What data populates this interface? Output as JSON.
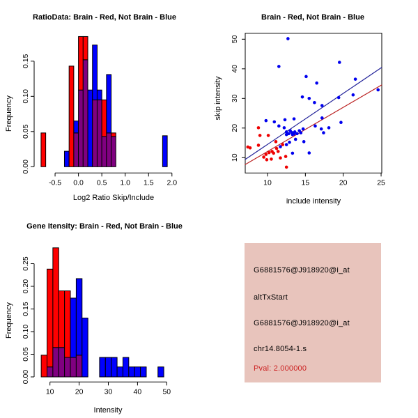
{
  "colors": {
    "red_bar": "#ff0000",
    "blue_bar": "#0000ff",
    "overlap_purple": "#800080",
    "red_point": "#ee0000",
    "blue_point": "#0000ee",
    "red_line": "#bb2222",
    "blue_line": "#222299",
    "axis": "#000000",
    "info_bg": "#e8c4bc",
    "pval_red": "#cc2222"
  },
  "chart_data": [
    {
      "id": "ratio_hist",
      "type": "bar",
      "title": "RatioData: Brain - Red, Not Brain - Blue",
      "xlabel": "Log2 Ratio Skip/Include",
      "ylabel": "Frequency",
      "legend": "Brain = red bars, Not Brain = blue bars, overlap = purple",
      "xlim": [
        -0.95,
        2.0
      ],
      "ylim": [
        0,
        0.19
      ],
      "bin_width": 0.1,
      "xtick_values": [
        -0.5,
        0.0,
        0.5,
        1.0,
        1.5,
        2.0
      ],
      "xtick_labels": [
        "-0.5",
        "0.0",
        "0.5",
        "1.0",
        "1.5",
        "2.0"
      ],
      "ytick_values": [
        0.0,
        0.05,
        0.1,
        0.15
      ],
      "ytick_labels": [
        "0.00",
        "0.05",
        "0.10",
        "0.15"
      ],
      "bars": [
        {
          "bin": [
            -0.8,
            -0.7
          ],
          "red": 0.048,
          "blue": 0
        },
        {
          "bin": [
            -0.3,
            -0.2
          ],
          "red": 0,
          "blue": 0.022
        },
        {
          "bin": [
            -0.2,
            -0.1
          ],
          "red": 0.143,
          "blue": 0
        },
        {
          "bin": [
            -0.1,
            0.0
          ],
          "red": 0.048,
          "blue": 0.065
        },
        {
          "bin": [
            0.0,
            0.1
          ],
          "red": 0.185,
          "blue": 0.109
        },
        {
          "bin": [
            0.1,
            0.2
          ],
          "red": 0.185,
          "blue": 0.152
        },
        {
          "bin": [
            0.2,
            0.3
          ],
          "red": 0,
          "blue": 0.109
        },
        {
          "bin": [
            0.3,
            0.4
          ],
          "red": 0.095,
          "blue": 0.173
        },
        {
          "bin": [
            0.4,
            0.5
          ],
          "red": 0.095,
          "blue": 0.109
        },
        {
          "bin": [
            0.5,
            0.6
          ],
          "red": 0.095,
          "blue": 0.043
        },
        {
          "bin": [
            0.6,
            0.7
          ],
          "red": 0.048,
          "blue": 0.131
        },
        {
          "bin": [
            0.7,
            0.8
          ],
          "red": 0.048,
          "blue": 0.043
        },
        {
          "bin": [
            1.8,
            1.9
          ],
          "red": 0,
          "blue": 0.044
        }
      ]
    },
    {
      "id": "intensity_scatter",
      "type": "scatter",
      "title": "Brain - Red, Not Brain - Blue",
      "xlabel": "include intensity",
      "ylabel": "skip intensity",
      "xlim": [
        7.0,
        25.1
      ],
      "ylim": [
        4.8,
        52.0
      ],
      "xtick_values": [
        10,
        15,
        20,
        25
      ],
      "xtick_labels": [
        "10",
        "15",
        "20",
        "25"
      ],
      "ytick_values": [
        10,
        20,
        30,
        40,
        50
      ],
      "ytick_labels": [
        "10",
        "20",
        "30",
        "40",
        "50"
      ],
      "blue_points": [
        [
          12.7,
          50.2
        ],
        [
          11.5,
          40.8
        ],
        [
          19.5,
          42.2
        ],
        [
          15.1,
          37.4
        ],
        [
          16.5,
          35.2
        ],
        [
          21.6,
          36.5
        ],
        [
          14.6,
          30.5
        ],
        [
          15.5,
          30.0
        ],
        [
          21.3,
          31.2
        ],
        [
          24.6,
          32.9
        ],
        [
          19.4,
          30.3
        ],
        [
          16.2,
          28.6
        ],
        [
          17.2,
          27.6
        ],
        [
          9.8,
          22.5
        ],
        [
          10.9,
          22.1
        ],
        [
          11.5,
          20.7
        ],
        [
          12.3,
          22.8
        ],
        [
          13.5,
          23.1
        ],
        [
          12.2,
          20.1
        ],
        [
          12.5,
          18.7
        ],
        [
          12.5,
          17.8
        ],
        [
          12.8,
          18.1
        ],
        [
          13.0,
          19.1
        ],
        [
          13.2,
          18.5
        ],
        [
          13.3,
          17.8
        ],
        [
          13.5,
          18.0
        ],
        [
          13.6,
          18.7
        ],
        [
          13.9,
          18.1
        ],
        [
          14.2,
          19.1
        ],
        [
          14.4,
          18.4
        ],
        [
          14.7,
          19.7
        ],
        [
          13.7,
          16.2
        ],
        [
          12.9,
          15.2
        ],
        [
          12.5,
          14.4
        ],
        [
          11.7,
          13.7
        ],
        [
          13.3,
          11.5
        ],
        [
          15.5,
          11.6
        ],
        [
          14.8,
          15.4
        ],
        [
          17.4,
          18.4
        ],
        [
          17.1,
          19.7
        ],
        [
          16.3,
          20.7
        ],
        [
          18.1,
          20.1
        ],
        [
          17.2,
          23.4
        ],
        [
          19.7,
          21.9
        ]
      ],
      "red_points": [
        [
          8.8,
          20.1
        ],
        [
          9.0,
          17.5
        ],
        [
          10.1,
          17.5
        ],
        [
          7.4,
          13.6
        ],
        [
          7.7,
          13.3
        ],
        [
          8.8,
          14.2
        ],
        [
          9.8,
          11.1
        ],
        [
          9.5,
          10.2
        ],
        [
          10.2,
          11.7
        ],
        [
          10.6,
          12.1
        ],
        [
          10.8,
          11.5
        ],
        [
          11.2,
          13.1
        ],
        [
          11.4,
          12.1
        ],
        [
          11.1,
          15.4
        ],
        [
          9.9,
          9.3
        ],
        [
          10.5,
          9.5
        ],
        [
          11.7,
          9.9
        ],
        [
          12.4,
          10.4
        ],
        [
          12.5,
          6.8
        ],
        [
          12.0,
          14.4
        ]
      ],
      "blue_fit_line": {
        "x1": 7.0,
        "y1": 9.3,
        "x2": 25.1,
        "y2": 40.5
      },
      "red_fit_line": {
        "x1": 7.0,
        "y1": 7.6,
        "x2": 25.1,
        "y2": 34.6
      }
    },
    {
      "id": "gene_intensity_hist",
      "type": "bar",
      "title": "Gene Itensity: Brain - Red, Not Brain - Blue",
      "xlabel": "Intensity",
      "ylabel": "Frequency",
      "legend": "Brain = red bars, Not Brain = blue bars, overlap = purple",
      "xlim": [
        7,
        50
      ],
      "ylim": [
        0,
        0.29
      ],
      "bin_width": 2,
      "xtick_values": [
        10,
        20,
        30,
        40,
        50
      ],
      "xtick_labels": [
        "10",
        "20",
        "30",
        "40",
        "50"
      ],
      "ytick_values": [
        0.0,
        0.05,
        0.1,
        0.15,
        0.2,
        0.25
      ],
      "ytick_labels": [
        "0.00",
        "0.05",
        "0.10",
        "0.15",
        "0.20",
        "0.25"
      ],
      "bars": [
        {
          "bin": [
            7,
            9
          ],
          "red": 0.048,
          "blue": 0
        },
        {
          "bin": [
            9,
            11
          ],
          "red": 0.238,
          "blue": 0.022
        },
        {
          "bin": [
            11,
            13
          ],
          "red": 0.285,
          "blue": 0.065
        },
        {
          "bin": [
            13,
            15
          ],
          "red": 0.19,
          "blue": 0.065
        },
        {
          "bin": [
            15,
            17
          ],
          "red": 0.19,
          "blue": 0.043
        },
        {
          "bin": [
            17,
            19
          ],
          "red": 0.043,
          "blue": 0.174
        },
        {
          "bin": [
            19,
            21
          ],
          "red": 0.048,
          "blue": 0.217
        },
        {
          "bin": [
            21,
            23
          ],
          "red": 0,
          "blue": 0.13
        },
        {
          "bin": [
            27,
            29
          ],
          "red": 0,
          "blue": 0.043
        },
        {
          "bin": [
            29,
            31
          ],
          "red": 0,
          "blue": 0.043
        },
        {
          "bin": [
            31,
            33
          ],
          "red": 0,
          "blue": 0.043
        },
        {
          "bin": [
            33,
            35
          ],
          "red": 0,
          "blue": 0.022
        },
        {
          "bin": [
            35,
            37
          ],
          "red": 0,
          "blue": 0.043
        },
        {
          "bin": [
            37,
            39
          ],
          "red": 0,
          "blue": 0.022
        },
        {
          "bin": [
            39,
            41
          ],
          "red": 0,
          "blue": 0.022
        },
        {
          "bin": [
            41,
            43
          ],
          "red": 0,
          "blue": 0.022
        },
        {
          "bin": [
            47,
            49
          ],
          "red": 0,
          "blue": 0.022
        }
      ]
    }
  ],
  "info_panel": {
    "lines": [
      {
        "text": "G6881576@J918920@i_at",
        "color": "black"
      },
      {
        "text": "altTxStart",
        "color": "black"
      },
      {
        "text": "G6881576@J918920@i_at",
        "color": "black"
      },
      {
        "text": "chr14.8054-1.s",
        "color": "black"
      },
      {
        "text": "Pval: 2.000000",
        "color": "red"
      }
    ]
  }
}
